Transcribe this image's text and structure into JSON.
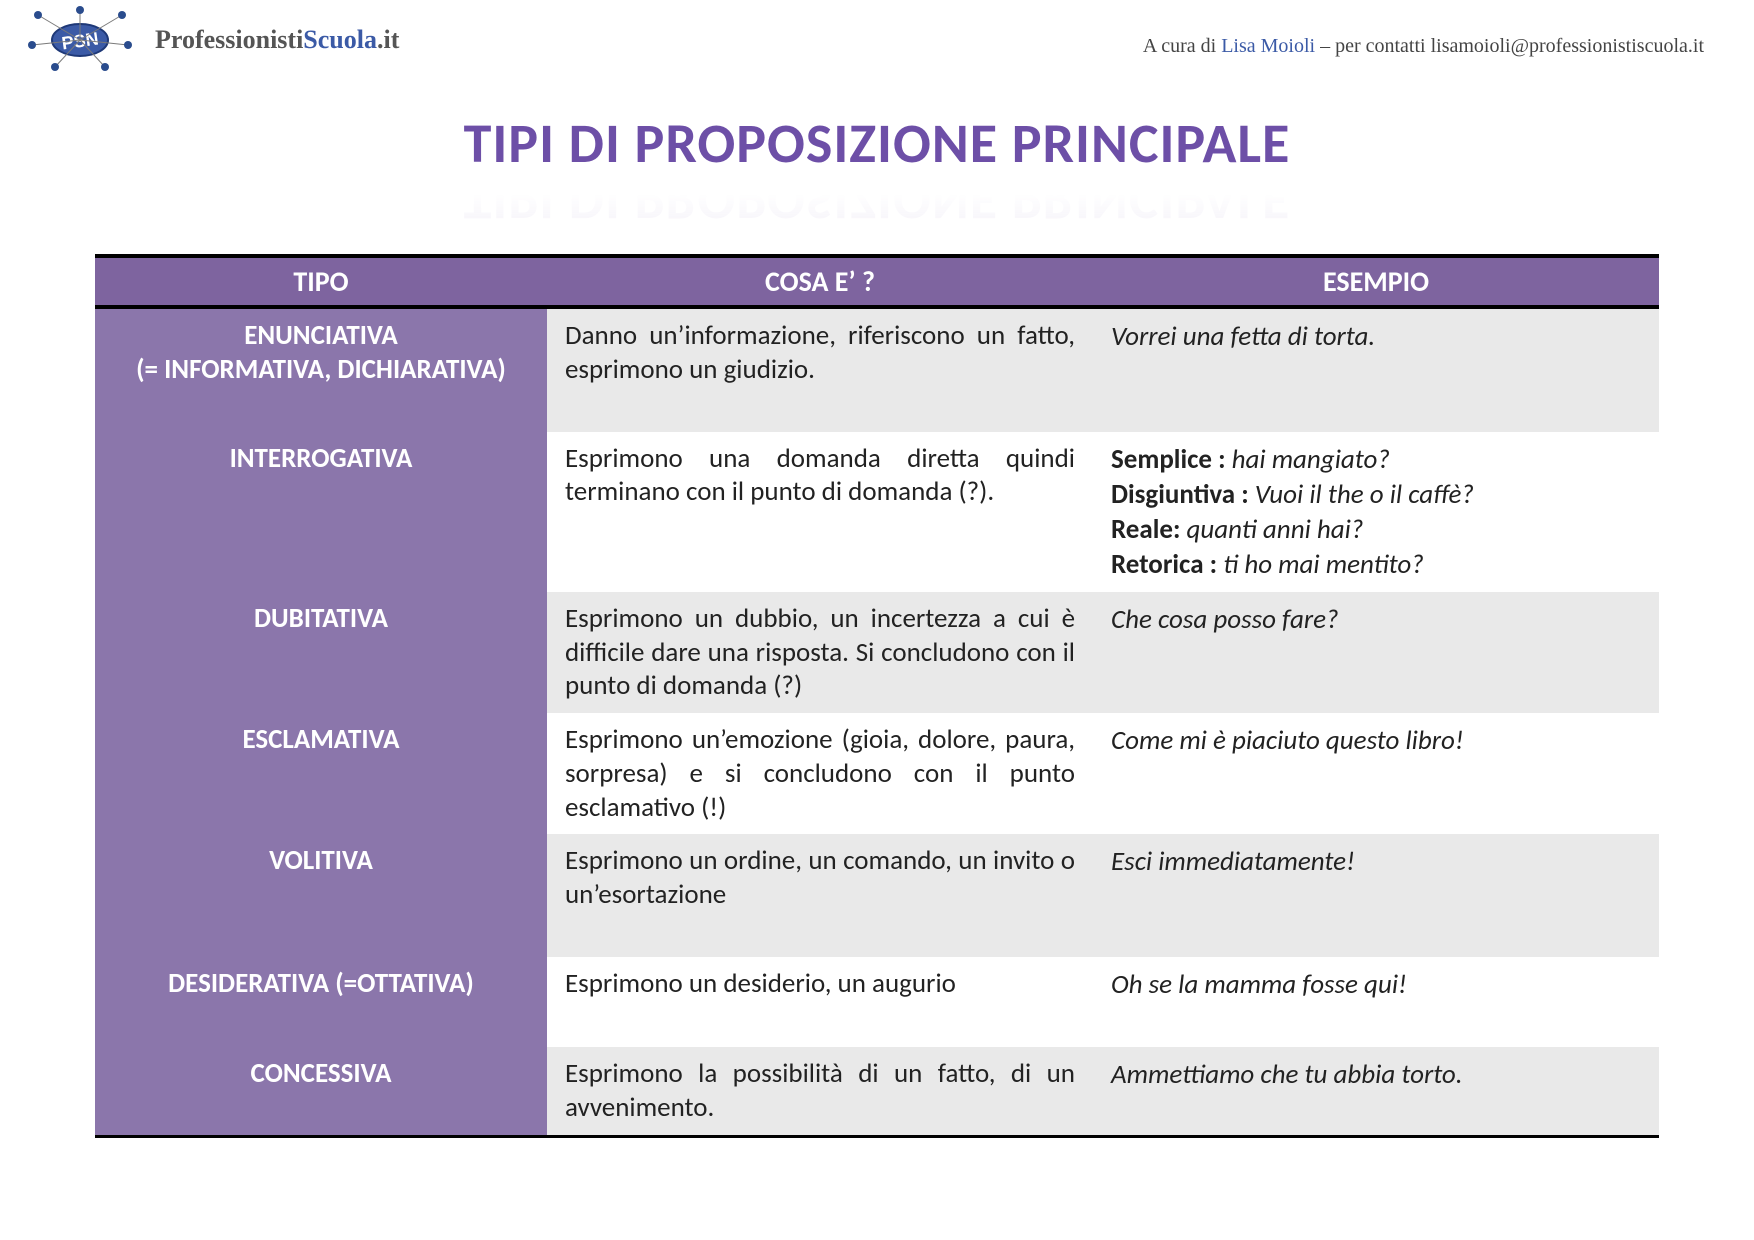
{
  "header": {
    "site_bold": "Professionisti",
    "site_blue": "Scuola",
    "site_suffix": ".it",
    "byline_prefix": "A cura di ",
    "byline_author": "Lisa Moioli",
    "byline_suffix": "  – per contatti  lisamoioli@professionistiscuola.it"
  },
  "title": "TIPI DI PROPOSIZIONE PRINCIPALE",
  "colors": {
    "title_color": "#6d4fa7",
    "header_bg": "#7e649f",
    "tipo_bg": "#8b76ab",
    "cell_alt_bg": "#e9e9e9",
    "top_border": "#000000"
  },
  "columns": [
    "TIPO",
    "COSA E’ ?",
    "ESEMPIO"
  ],
  "rows": [
    {
      "tipo_lines": [
        "ENUNCIATIVA",
        "(= INFORMATIVA, DICHIARATIVA)"
      ],
      "desc": "Danno un’informazione, riferiscono un fatto, esprimono un giudizio.",
      "examples": [
        {
          "label": "",
          "text": "Vorrei una fetta di torta."
        }
      ],
      "spacer_after": true
    },
    {
      "tipo_lines": [
        "INTERROGATIVA"
      ],
      "desc": "Esprimono una domanda diretta quindi terminano con il punto di domanda (?).",
      "examples": [
        {
          "label": "Semplice : ",
          "text": "hai mangiato?"
        },
        {
          "label": "Disgiuntiva : ",
          "text": "Vuoi il the o il caffè?"
        },
        {
          "label": "Reale: ",
          "text": "quanti anni hai?"
        },
        {
          "label": "Retorica : ",
          "text": "ti ho mai mentito?"
        }
      ],
      "spacer_after": false
    },
    {
      "tipo_lines": [
        "DUBITATIVA"
      ],
      "desc": "Esprimono un dubbio, un incertezza a cui è difficile dare una risposta. Si concludono con il punto di domanda (?)",
      "examples": [
        {
          "label": "",
          "text": "Che cosa posso fare?"
        }
      ],
      "spacer_after": false
    },
    {
      "tipo_lines": [
        "ESCLAMATIVA"
      ],
      "desc": "Esprimono un’emozione (gioia, dolore, paura, sorpresa) e si concludono con il punto esclamativo (!)",
      "examples": [
        {
          "label": "",
          "text": "Come mi è piaciuto questo libro!"
        }
      ],
      "spacer_after": false
    },
    {
      "tipo_lines": [
        "VOLITIVA"
      ],
      "desc": "Esprimono un ordine, un comando, un invito o un’esortazione",
      "examples": [
        {
          "label": "",
          "text": "Esci immediatamente!"
        }
      ],
      "spacer_after": true
    },
    {
      "tipo_lines": [
        "DESIDERATIVA (=OTTATIVA)"
      ],
      "desc": "Esprimono un desiderio, un augurio",
      "examples": [
        {
          "label": "",
          "text": "Oh se la mamma fosse qui!"
        }
      ],
      "spacer_after": true
    },
    {
      "tipo_lines": [
        "CONCESSIVA"
      ],
      "desc": "Esprimono la possibilità di un fatto, di un avvenimento.",
      "examples": [
        {
          "label": "",
          "text": "Ammettiamo che tu abbia torto."
        }
      ],
      "spacer_after": false
    }
  ]
}
